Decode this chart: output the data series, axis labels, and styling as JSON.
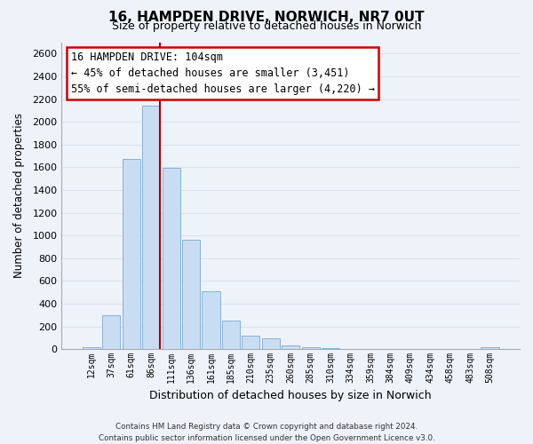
{
  "title": "16, HAMPDEN DRIVE, NORWICH, NR7 0UT",
  "subtitle": "Size of property relative to detached houses in Norwich",
  "xlabel": "Distribution of detached houses by size in Norwich",
  "ylabel": "Number of detached properties",
  "bar_labels": [
    "12sqm",
    "37sqm",
    "61sqm",
    "86sqm",
    "111sqm",
    "136sqm",
    "161sqm",
    "185sqm",
    "210sqm",
    "235sqm",
    "260sqm",
    "285sqm",
    "310sqm",
    "334sqm",
    "359sqm",
    "384sqm",
    "409sqm",
    "434sqm",
    "458sqm",
    "483sqm",
    "508sqm"
  ],
  "bar_values": [
    15,
    295,
    1670,
    2140,
    1595,
    965,
    505,
    252,
    120,
    95,
    35,
    15,
    5,
    3,
    2,
    1,
    1,
    0,
    0,
    0,
    20
  ],
  "bar_color": "#c9ddf2",
  "bar_edge_color": "#7aaad0",
  "marker_bar_index": 3,
  "marker_color": "#aa0000",
  "ylim": [
    0,
    2700
  ],
  "yticks": [
    0,
    200,
    400,
    600,
    800,
    1000,
    1200,
    1400,
    1600,
    1800,
    2000,
    2200,
    2400,
    2600
  ],
  "annotation_title": "16 HAMPDEN DRIVE: 104sqm",
  "annotation_line1": "← 45% of detached houses are smaller (3,451)",
  "annotation_line2": "55% of semi-detached houses are larger (4,220) →",
  "annotation_box_facecolor": "#ffffff",
  "annotation_box_edgecolor": "#cc0000",
  "footer_line1": "Contains HM Land Registry data © Crown copyright and database right 2024.",
  "footer_line2": "Contains public sector information licensed under the Open Government Licence v3.0.",
  "background_color": "#eef2f9",
  "grid_color": "#d8e4f0",
  "plot_bg_color": "#eef2f9"
}
